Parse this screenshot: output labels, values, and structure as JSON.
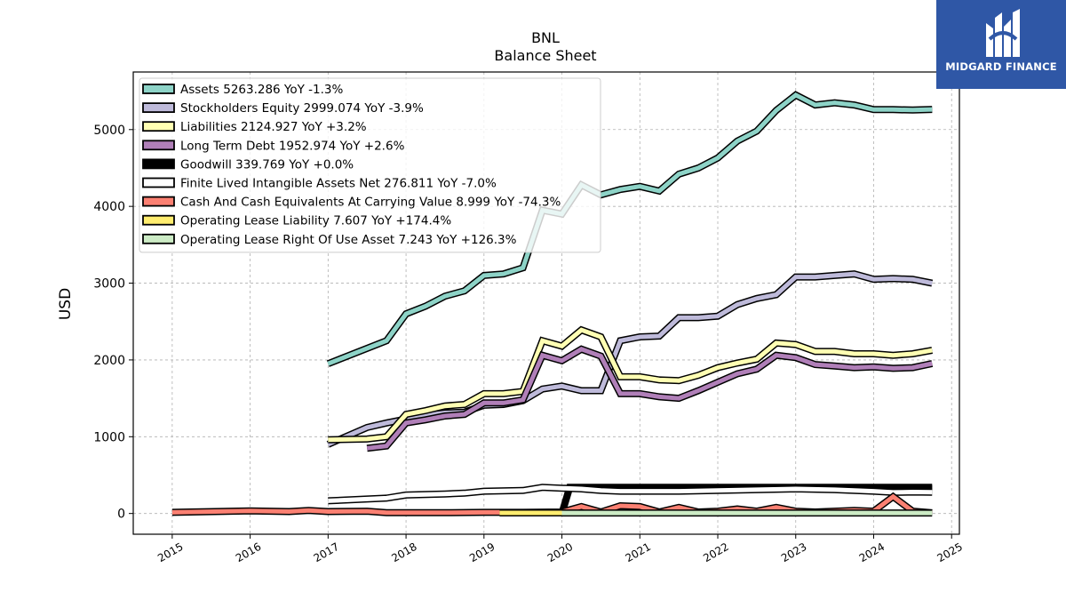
{
  "brand": {
    "name": "MIDGARD FINANCE",
    "logo_icon": "midgard-m-logo-icon",
    "logo_color": "#2f57a6"
  },
  "chart_data": {
    "type": "line",
    "title": "BNL",
    "subtitle": "Balance  Sheet",
    "ylabel": "USD",
    "xlabel": "",
    "xlim": [
      2014.5,
      2025.1
    ],
    "ylim": [
      -270,
      5750
    ],
    "xticks": [
      "2015",
      "2016",
      "2017",
      "2018",
      "2019",
      "2020",
      "2021",
      "2022",
      "2023",
      "2024",
      "2025"
    ],
    "yticks": [
      "0",
      "1000",
      "2000",
      "3000",
      "4000",
      "5000"
    ],
    "grid": true,
    "legend_position": "top-left",
    "series": [
      {
        "name": "Assets  5263.286 YoY -1.3%",
        "color": "#8dd3c7",
        "width": 5,
        "x": [
          2017,
          2017.75,
          2018,
          2018.25,
          2018.5,
          2018.75,
          2019,
          2019.25,
          2019.5,
          2019.75,
          2020,
          2020.25,
          2020.5,
          2020.75,
          2021,
          2021.25,
          2021.5,
          2021.75,
          2022,
          2022.25,
          2022.5,
          2022.75,
          2023,
          2023.25,
          2023.5,
          2023.75,
          2024,
          2024.25,
          2024.5,
          2024.75
        ],
        "y": [
          1950,
          2250,
          2600,
          2700,
          2830,
          2900,
          3100,
          3120,
          3200,
          3950,
          3900,
          4280,
          4150,
          4220,
          4260,
          4200,
          4420,
          4500,
          4630,
          4850,
          4980,
          5250,
          5450,
          5320,
          5350,
          5320,
          5260,
          5260,
          5255,
          5263
        ]
      },
      {
        "name": "Stockholders Equity  2999.074 YoY -3.9%",
        "color": "#bebada",
        "width": 5,
        "x": [
          2017,
          2017.5,
          2017.75,
          2018,
          2018.25,
          2018.5,
          2018.75,
          2019,
          2019.25,
          2019.5,
          2019.75,
          2020,
          2020.25,
          2020.5,
          2020.75,
          2021,
          2021.25,
          2021.5,
          2021.75,
          2022,
          2022.25,
          2022.5,
          2022.75,
          2023,
          2023.25,
          2023.5,
          2023.75,
          2024,
          2024.25,
          2024.5,
          2024.75
        ],
        "y": [
          900,
          1120,
          1180,
          1230,
          1280,
          1310,
          1320,
          1410,
          1420,
          1470,
          1620,
          1660,
          1600,
          1600,
          2250,
          2300,
          2310,
          2550,
          2550,
          2570,
          2720,
          2800,
          2850,
          3080,
          3080,
          3100,
          3120,
          3050,
          3060,
          3050,
          2999
        ]
      },
      {
        "name": "Liabilities  2124.927 YoY +3.2%",
        "color": "#ffffb3",
        "width": 5,
        "x": [
          2017,
          2017.5,
          2017.75,
          2018,
          2018.25,
          2018.5,
          2018.75,
          2019,
          2019.25,
          2019.5,
          2019.75,
          2020,
          2020.25,
          2020.5,
          2020.75,
          2021,
          2021.25,
          2021.5,
          2021.75,
          2022,
          2022.25,
          2022.5,
          2022.75,
          2023,
          2023.25,
          2023.5,
          2023.75,
          2024,
          2024.25,
          2024.5,
          2024.75
        ],
        "y": [
          960,
          970,
          1000,
          1290,
          1340,
          1400,
          1420,
          1560,
          1560,
          1590,
          2250,
          2180,
          2390,
          2300,
          1780,
          1780,
          1740,
          1730,
          1800,
          1900,
          1960,
          2010,
          2220,
          2200,
          2110,
          2110,
          2080,
          2080,
          2060,
          2080,
          2125
        ]
      },
      {
        "name": "Long Term Debt  1952.974 YoY +2.6%",
        "color": "#b07fb8",
        "width": 5,
        "x": [
          2017.5,
          2017.75,
          2018,
          2018.25,
          2018.5,
          2018.75,
          2019,
          2019.25,
          2019.5,
          2019.75,
          2020,
          2020.25,
          2020.5,
          2020.75,
          2021,
          2021.25,
          2021.5,
          2021.75,
          2022,
          2022.25,
          2022.5,
          2022.75,
          2023,
          2023.25,
          2023.5,
          2023.75,
          2024,
          2024.25,
          2024.5,
          2024.75
        ],
        "y": [
          850,
          880,
          1180,
          1220,
          1270,
          1290,
          1440,
          1440,
          1480,
          2060,
          1990,
          2140,
          2050,
          1560,
          1560,
          1520,
          1500,
          1600,
          1710,
          1820,
          1880,
          2060,
          2030,
          1940,
          1920,
          1900,
          1910,
          1890,
          1900,
          1953
        ]
      },
      {
        "name": "Goodwill  339.769 YoY +0.0%",
        "color": "#000000",
        "width": 5,
        "x": [
          2020,
          2020.1,
          2020.25,
          2020.5,
          2020.75,
          2021,
          2021.5,
          2022,
          2022.5,
          2023,
          2023.5,
          2024,
          2024.5,
          2024.75
        ],
        "y": [
          0,
          340,
          340,
          340,
          340,
          340,
          340,
          340,
          340,
          340,
          340,
          340,
          340,
          340
        ]
      },
      {
        "name": "Finite Lived Intangible Assets Net  276.811 YoY -7.0%",
        "color": "#ffffff",
        "width": 5,
        "x": [
          2017,
          2017.75,
          2018,
          2018.5,
          2018.75,
          2019,
          2019.5,
          2019.75,
          2020,
          2020.25,
          2020.5,
          2020.75,
          2021,
          2021.5,
          2022,
          2022.5,
          2023,
          2023.5,
          2024,
          2024.25,
          2024.5,
          2024.75
        ],
        "y": [
          165,
          200,
          240,
          255,
          265,
          290,
          300,
          340,
          330,
          320,
          300,
          290,
          290,
          290,
          300,
          310,
          320,
          310,
          290,
          275,
          280,
          277
        ]
      },
      {
        "name": "Cash And Cash Equivalents At Carrying Value  8.999 YoY -74.3%",
        "color": "#fb8072",
        "width": 5,
        "x": [
          2015,
          2016,
          2016.5,
          2016.75,
          2017,
          2017.5,
          2017.75,
          2018,
          2018.5,
          2019,
          2019.5,
          2020,
          2020.25,
          2020.5,
          2020.75,
          2021,
          2021.25,
          2021.5,
          2021.75,
          2022,
          2022.25,
          2022.5,
          2022.75,
          2023,
          2023.25,
          2023.5,
          2023.75,
          2024,
          2024.25,
          2024.5,
          2024.75
        ],
        "y": [
          15,
          35,
          25,
          40,
          25,
          30,
          10,
          10,
          10,
          15,
          15,
          20,
          90,
          20,
          100,
          90,
          20,
          80,
          20,
          30,
          60,
          30,
          80,
          30,
          20,
          30,
          40,
          30,
          220,
          30,
          9
        ]
      },
      {
        "name": "Operating Lease Liability  7.607 YoY +174.4%",
        "color": "#ffed6f",
        "width": 5,
        "x": [
          2019.2,
          2020
        ],
        "y": [
          8,
          8
        ]
      },
      {
        "name": "Operating Lease Right Of Use Asset  7.243 YoY +126.3%",
        "color": "#ccebc5",
        "width": 5,
        "x": [
          2020,
          2024.75
        ],
        "y": [
          7,
          7
        ]
      }
    ]
  }
}
